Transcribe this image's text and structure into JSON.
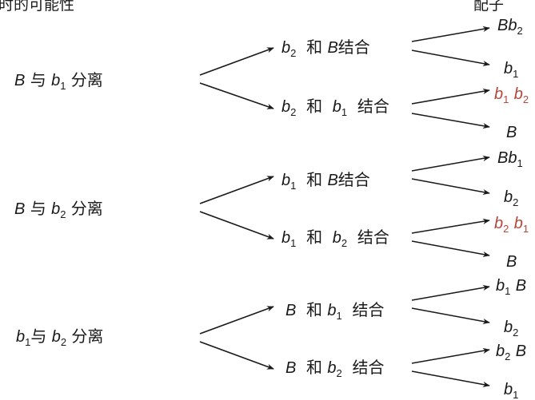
{
  "header": {
    "left_text": "时的可能性",
    "right_text": "配子"
  },
  "separations": [
    {
      "text": [
        [
          "B",
          ""
        ],
        [
          " 与 ",
          ""
        ],
        [
          "b",
          "1"
        ],
        [
          " 分离",
          ""
        ]
      ]
    },
    {
      "text": [
        [
          "B",
          ""
        ],
        [
          " 与 ",
          ""
        ],
        [
          "b",
          "2"
        ],
        [
          " 分离",
          ""
        ]
      ]
    },
    {
      "text": [
        [
          "b",
          "1"
        ],
        [
          "与 ",
          ""
        ],
        [
          "b",
          "2"
        ],
        [
          " 分离",
          ""
        ]
      ]
    }
  ],
  "combinations": [
    {
      "text": [
        [
          "b",
          "2"
        ],
        [
          "  和 ",
          ""
        ],
        [
          "B",
          ""
        ],
        [
          "结合",
          ""
        ]
      ]
    },
    {
      "text": [
        [
          "b",
          "2"
        ],
        [
          "  和  ",
          ""
        ],
        [
          "b",
          "1"
        ],
        [
          "  结合",
          ""
        ]
      ]
    },
    {
      "text": [
        [
          "b",
          "1"
        ],
        [
          "  和 ",
          ""
        ],
        [
          "B",
          ""
        ],
        [
          "结合",
          ""
        ]
      ]
    },
    {
      "text": [
        [
          "b",
          "1"
        ],
        [
          "  和  ",
          ""
        ],
        [
          "b",
          "2"
        ],
        [
          "  结合",
          ""
        ]
      ]
    },
    {
      "text": [
        [
          "B",
          ""
        ],
        [
          "  和 ",
          ""
        ],
        [
          "b",
          "1"
        ],
        [
          "  结合",
          ""
        ]
      ]
    },
    {
      "text": [
        [
          "B",
          ""
        ],
        [
          "  和 ",
          ""
        ],
        [
          "b",
          "2"
        ],
        [
          "  结合",
          ""
        ]
      ]
    }
  ],
  "gametes": [
    {
      "text": [
        [
          "B",
          ""
        ],
        [
          "b",
          "2"
        ]
      ],
      "highlight": false
    },
    {
      "text": [
        [
          "b",
          "1"
        ]
      ],
      "highlight": false
    },
    {
      "text": [
        [
          "b",
          "1"
        ],
        [
          " ",
          ""
        ],
        [
          "b",
          "2"
        ]
      ],
      "highlight": true
    },
    {
      "text": [
        [
          "B",
          ""
        ]
      ],
      "highlight": false
    },
    {
      "text": [
        [
          "B",
          ""
        ],
        [
          "b",
          "1"
        ]
      ],
      "highlight": false
    },
    {
      "text": [
        [
          "b",
          "2"
        ]
      ],
      "highlight": false
    },
    {
      "text": [
        [
          "b",
          "2"
        ],
        [
          " ",
          ""
        ],
        [
          "b",
          "1"
        ]
      ],
      "highlight": true
    },
    {
      "text": [
        [
          "B",
          ""
        ]
      ],
      "highlight": false
    },
    {
      "text": [
        [
          "b",
          "1"
        ],
        [
          " ",
          ""
        ],
        [
          "B",
          ""
        ]
      ],
      "highlight": false
    },
    {
      "text": [
        [
          "b",
          "2"
        ]
      ],
      "highlight": false
    },
    {
      "text": [
        [
          "b",
          "2"
        ],
        [
          " ",
          ""
        ],
        [
          "B",
          ""
        ]
      ],
      "highlight": false
    },
    {
      "text": [
        [
          "b",
          "1"
        ]
      ],
      "highlight": false
    }
  ],
  "colors": {
    "line": "#1a1a1a",
    "highlight": "#b5483c"
  }
}
